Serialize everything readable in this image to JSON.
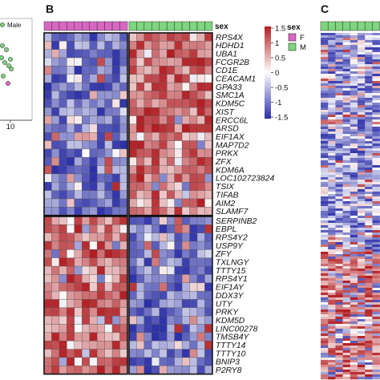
{
  "panels": {
    "b": "B",
    "c": "C"
  },
  "panel_a": {
    "legend_label": "Male",
    "axis_tick": "10"
  },
  "annotation_label": "sex",
  "groups": [
    {
      "code": "F",
      "color": "#d966c3"
    },
    {
      "code": "M",
      "color": "#7ed67e"
    }
  ],
  "colors": {
    "low": "#2b2fa8",
    "mid": "#ffffff",
    "high": "#b21d22"
  },
  "chart_data": [
    {
      "type": "heatmap",
      "panel": "B",
      "color_scale": {
        "title": "",
        "min": -1.5,
        "max": 1.5,
        "ticks": [
          "1.5",
          "1",
          "0.5",
          "0",
          "-0.5",
          "-1",
          "-1.5"
        ]
      },
      "columns": {
        "F": 11,
        "M": 11
      },
      "rows_block1": [
        "RPS4X",
        "HDHD1",
        "UBA1",
        "FCGR2B",
        "CD1E",
        "CEACAM1",
        "GPA33",
        "SMC1A",
        "KDM5C",
        "XIST",
        "ERCC6L",
        "ARSD",
        "EIF1AX",
        "MAP7D2",
        "PRKX",
        "ZFX",
        "KDM6A",
        "LOC102723824",
        "TSIX",
        "TIFAB",
        "AIM2",
        "SLAMF7"
      ],
      "rows_block2": [
        "SERPINB2",
        "EBPL",
        "RPS4Y2",
        "USP9Y",
        "ZFY",
        "TXLNGY",
        "TTTY15",
        "RPS4Y1",
        "EIF1AY",
        "DDX3Y",
        "UTY",
        "PRKY",
        "KDM5D",
        "LINC00278",
        "TMSB4Y",
        "TTTY14",
        "TTTY10",
        "BNIP3",
        "P2RY8"
      ],
      "pattern": {
        "block1": {
          "F": "low",
          "M": "high"
        },
        "block2": {
          "F": "high",
          "M": "low"
        }
      }
    },
    {
      "type": "heatmap",
      "panel": "C",
      "pattern": {
        "upper": "mostly low",
        "lower": "mostly high"
      }
    }
  ]
}
